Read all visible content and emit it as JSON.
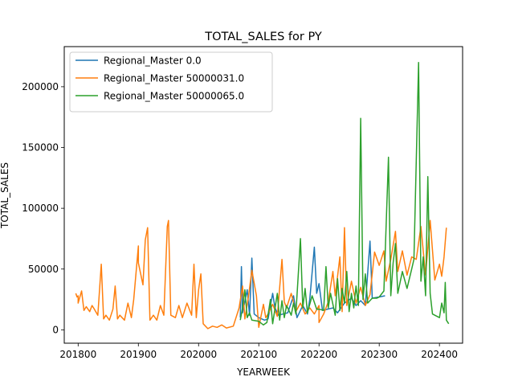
{
  "chart_data": {
    "type": "line",
    "title": "TOTAL_SALES for PY",
    "xlabel": "YEARWEEK",
    "ylabel": "TOTAL_SALES",
    "xlim": [
      201740,
      202420
    ],
    "ylim": [
      -11000,
      233000
    ],
    "x_ticks": [
      201800,
      201900,
      202000,
      202100,
      202200,
      202300,
      202400
    ],
    "x_tick_labels": [
      "201800",
      "201900",
      "202000",
      "202100",
      "202200",
      "202300",
      "202400"
    ],
    "y_ticks": [
      0,
      50000,
      100000,
      150000,
      200000
    ],
    "y_tick_labels": [
      "0",
      "50000",
      "100000",
      "150000",
      "200000"
    ],
    "grid": false,
    "legend_position": "top-left",
    "series": [
      {
        "name": "Regional_Master 0.0",
        "color": "#1f77b4",
        "points": [
          [
            202036,
            10000
          ],
          [
            202037,
            52000
          ],
          [
            202038,
            14000
          ],
          [
            202042,
            33000
          ],
          [
            202044,
            12000
          ],
          [
            202046,
            59000
          ],
          [
            202048,
            13000
          ],
          [
            202100,
            10000
          ],
          [
            202105,
            8000
          ],
          [
            202108,
            9000
          ],
          [
            202112,
            30000
          ],
          [
            202114,
            18000
          ],
          [
            202117,
            12000
          ],
          [
            202125,
            14000
          ],
          [
            202130,
            28000
          ],
          [
            202133,
            10000
          ],
          [
            202138,
            20000
          ],
          [
            202142,
            13000
          ],
          [
            202144,
            25000
          ],
          [
            202148,
            68000
          ],
          [
            202150,
            30000
          ],
          [
            202200,
            38000
          ],
          [
            202203,
            16000
          ],
          [
            202212,
            18000
          ],
          [
            202216,
            14000
          ],
          [
            202222,
            22000
          ],
          [
            202228,
            26000
          ],
          [
            202232,
            20000
          ],
          [
            202236,
            24000
          ],
          [
            202240,
            20000
          ],
          [
            202244,
            73000
          ],
          [
            202246,
            26000
          ],
          [
            202300,
            27000
          ],
          [
            202305,
            28000
          ]
        ]
      },
      {
        "name": "Regional_Master 50000031.0",
        "color": "#ff7f0e",
        "points": [
          [
            201750,
            30000
          ],
          [
            201751,
            27000
          ],
          [
            201752,
            28000
          ],
          [
            201800,
            22000
          ],
          [
            201803,
            32000
          ],
          [
            201805,
            16000
          ],
          [
            201807,
            19000
          ],
          [
            201810,
            15000
          ],
          [
            201812,
            20000
          ],
          [
            201814,
            17000
          ],
          [
            201817,
            12000
          ],
          [
            201820,
            54000
          ],
          [
            201822,
            9000
          ],
          [
            201824,
            12000
          ],
          [
            201827,
            8000
          ],
          [
            201830,
            17000
          ],
          [
            201832,
            36000
          ],
          [
            201834,
            9000
          ],
          [
            201836,
            12000
          ],
          [
            201840,
            8000
          ],
          [
            201843,
            22000
          ],
          [
            201846,
            10000
          ],
          [
            201848,
            25000
          ],
          [
            201852,
            69000
          ],
          [
            201900,
            55000
          ],
          [
            201904,
            37000
          ],
          [
            201906,
            74000
          ],
          [
            201908,
            84000
          ],
          [
            201910,
            8000
          ],
          [
            201913,
            12000
          ],
          [
            201916,
            8000
          ],
          [
            201919,
            20000
          ],
          [
            201922,
            12000
          ],
          [
            201925,
            85000
          ],
          [
            201926,
            90000
          ],
          [
            201928,
            12000
          ],
          [
            201932,
            10000
          ],
          [
            201935,
            20000
          ],
          [
            201938,
            10000
          ],
          [
            201942,
            22000
          ],
          [
            201946,
            12000
          ],
          [
            201948,
            54000
          ],
          [
            201950,
            10000
          ],
          [
            202000,
            33000
          ],
          [
            202002,
            46000
          ],
          [
            202004,
            5000
          ],
          [
            202008,
            1000
          ],
          [
            202012,
            3000
          ],
          [
            202016,
            2000
          ],
          [
            202020,
            4000
          ],
          [
            202024,
            1500
          ],
          [
            202030,
            3000
          ],
          [
            202035,
            18000
          ],
          [
            202038,
            36000
          ],
          [
            202040,
            9000
          ],
          [
            202043,
            27000
          ],
          [
            202046,
            49000
          ],
          [
            202050,
            28000
          ],
          [
            202100,
            2000
          ],
          [
            202104,
            21000
          ],
          [
            202106,
            10000
          ],
          [
            202108,
            13000
          ],
          [
            202112,
            21000
          ],
          [
            202116,
            11000
          ],
          [
            202120,
            58000
          ],
          [
            202122,
            23000
          ],
          [
            202124,
            18000
          ],
          [
            202128,
            30000
          ],
          [
            202132,
            15000
          ],
          [
            202136,
            22000
          ],
          [
            202140,
            13000
          ],
          [
            202144,
            18000
          ],
          [
            202148,
            13000
          ],
          [
            202152,
            20000
          ],
          [
            202200,
            6000
          ],
          [
            202204,
            13000
          ],
          [
            202208,
            23000
          ],
          [
            202212,
            48000
          ],
          [
            202214,
            28000
          ],
          [
            202218,
            60000
          ],
          [
            202220,
            15000
          ],
          [
            202222,
            84000
          ],
          [
            202224,
            20000
          ],
          [
            202228,
            40000
          ],
          [
            202232,
            22000
          ],
          [
            202236,
            35000
          ],
          [
            202240,
            20000
          ],
          [
            202244,
            29000
          ],
          [
            202248,
            64000
          ],
          [
            202300,
            53000
          ],
          [
            202304,
            65000
          ],
          [
            202306,
            40000
          ],
          [
            202310,
            58000
          ],
          [
            202314,
            81000
          ],
          [
            202316,
            48000
          ],
          [
            202320,
            65000
          ],
          [
            202324,
            45000
          ],
          [
            202328,
            60000
          ],
          [
            202332,
            58000
          ],
          [
            202336,
            85000
          ],
          [
            202340,
            45000
          ],
          [
            202344,
            90000
          ],
          [
            202348,
            41000
          ],
          [
            202400,
            54000
          ],
          [
            202402,
            44000
          ],
          [
            202404,
            60000
          ],
          [
            202406,
            84000
          ]
        ]
      },
      {
        "name": "Regional_Master 50000065.0",
        "color": "#2ca02c",
        "points": [
          [
            202036,
            8000
          ],
          [
            202038,
            18000
          ],
          [
            202040,
            33000
          ],
          [
            202042,
            10000
          ],
          [
            202044,
            14000
          ],
          [
            202046,
            8000
          ],
          [
            202100,
            7000
          ],
          [
            202104,
            4000
          ],
          [
            202107,
            6000
          ],
          [
            202110,
            25000
          ],
          [
            202112,
            5000
          ],
          [
            202116,
            30000
          ],
          [
            202118,
            8000
          ],
          [
            202120,
            24000
          ],
          [
            202122,
            10000
          ],
          [
            202124,
            20000
          ],
          [
            202128,
            12000
          ],
          [
            202130,
            22000
          ],
          [
            202132,
            13000
          ],
          [
            202136,
            75000
          ],
          [
            202138,
            18000
          ],
          [
            202140,
            34000
          ],
          [
            202142,
            14000
          ],
          [
            202146,
            28000
          ],
          [
            202150,
            17000
          ],
          [
            202200,
            17000
          ],
          [
            202204,
            16000
          ],
          [
            202206,
            52000
          ],
          [
            202208,
            18000
          ],
          [
            202210,
            30000
          ],
          [
            202214,
            12000
          ],
          [
            202216,
            42000
          ],
          [
            202218,
            16000
          ],
          [
            202220,
            34000
          ],
          [
            202222,
            22000
          ],
          [
            202224,
            48000
          ],
          [
            202226,
            15000
          ],
          [
            202228,
            30000
          ],
          [
            202230,
            18000
          ],
          [
            202232,
            36000
          ],
          [
            202234,
            20000
          ],
          [
            202236,
            174000
          ],
          [
            202238,
            25000
          ],
          [
            202240,
            46000
          ],
          [
            202242,
            22000
          ],
          [
            202246,
            26000
          ],
          [
            202250,
            26000
          ],
          [
            202300,
            27000
          ],
          [
            202304,
            32000
          ],
          [
            202308,
            142000
          ],
          [
            202310,
            28000
          ],
          [
            202312,
            55000
          ],
          [
            202314,
            71000
          ],
          [
            202316,
            30000
          ],
          [
            202320,
            48000
          ],
          [
            202324,
            34000
          ],
          [
            202328,
            50000
          ],
          [
            202330,
            58000
          ],
          [
            202334,
            220000
          ],
          [
            202336,
            40000
          ],
          [
            202338,
            60000
          ],
          [
            202340,
            28000
          ],
          [
            202342,
            126000
          ],
          [
            202344,
            30000
          ],
          [
            202346,
            13000
          ],
          [
            202400,
            10000
          ],
          [
            202402,
            22000
          ],
          [
            202404,
            14000
          ],
          [
            202405,
            39000
          ],
          [
            202406,
            8000
          ],
          [
            202408,
            5000
          ]
        ]
      }
    ]
  }
}
